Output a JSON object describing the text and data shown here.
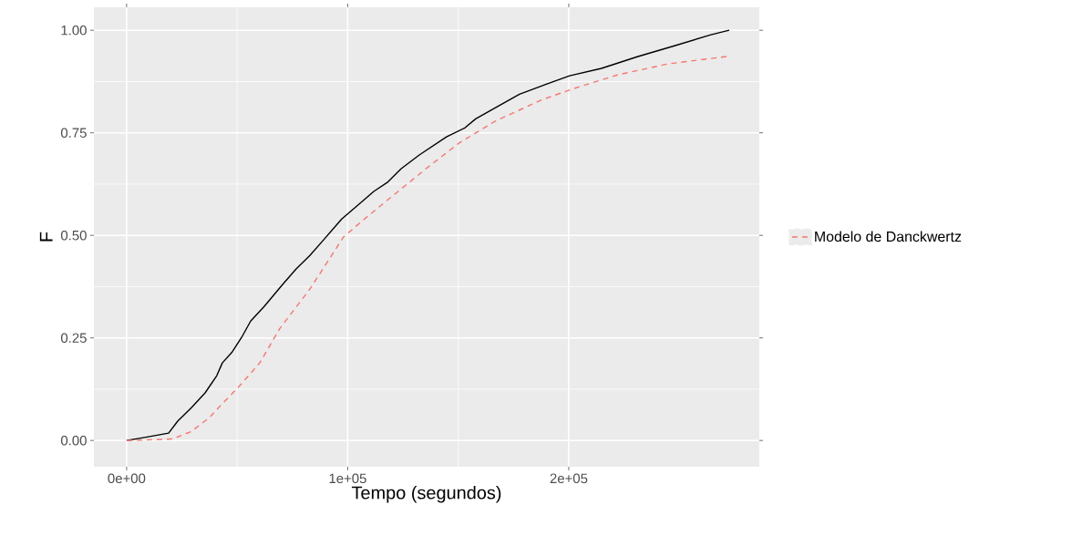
{
  "chart_data": {
    "type": "line",
    "xlabel": "Tempo (segundos)",
    "ylabel": "F",
    "xlim": [
      -14800,
      286200
    ],
    "ylim": [
      -0.064,
      1.056
    ],
    "xticks": [
      {
        "value": 0,
        "label": "0e+00"
      },
      {
        "value": 100000,
        "label": "1e+05"
      },
      {
        "value": 200000,
        "label": "2e+05"
      }
    ],
    "yticks": [
      {
        "value": 0,
        "label": "0.00"
      },
      {
        "value": 0.25,
        "label": "0.25"
      },
      {
        "value": 0.5,
        "label": "0.50"
      },
      {
        "value": 0.75,
        "label": "0.75"
      },
      {
        "value": 1,
        "label": "1.00"
      }
    ],
    "grid": true,
    "legend": "right",
    "series": [
      {
        "color": "#000000",
        "line_style": "solid",
        "x": [
          0,
          4500,
          9900,
          19000,
          23100,
          29300,
          35500,
          40800,
          43300,
          47800,
          52000,
          56100,
          62300,
          70500,
          76700,
          82900,
          89100,
          97300,
          105600,
          111800,
          117900,
          124100,
          132400,
          144700,
          153000,
          157900,
          167400,
          177700,
          190100,
          200400,
          214800,
          231300,
          247800,
          264300,
          272600
        ],
        "values": [
          0,
          0.004,
          0.009,
          0.018,
          0.047,
          0.08,
          0.116,
          0.158,
          0.189,
          0.216,
          0.251,
          0.291,
          0.327,
          0.38,
          0.418,
          0.451,
          0.489,
          0.54,
          0.578,
          0.607,
          0.629,
          0.662,
          0.696,
          0.74,
          0.762,
          0.784,
          0.813,
          0.844,
          0.869,
          0.889,
          0.907,
          0.936,
          0.962,
          0.989,
          1.0
        ]
      },
      {
        "name": "Modelo de Danckwertz",
        "color": "#f8766d",
        "line_style": "dashed",
        "x": [
          0,
          12800,
          21000,
          29300,
          37500,
          41600,
          51100,
          60200,
          69300,
          82900,
          98100,
          107600,
          121200,
          135300,
          150100,
          166600,
          187200,
          201200,
          221900,
          244900,
          271300
        ],
        "values": [
          0,
          0.002,
          0.004,
          0.022,
          0.056,
          0.08,
          0.133,
          0.189,
          0.273,
          0.369,
          0.496,
          0.54,
          0.6,
          0.662,
          0.724,
          0.778,
          0.829,
          0.856,
          0.891,
          0.918,
          0.936
        ]
      }
    ]
  }
}
